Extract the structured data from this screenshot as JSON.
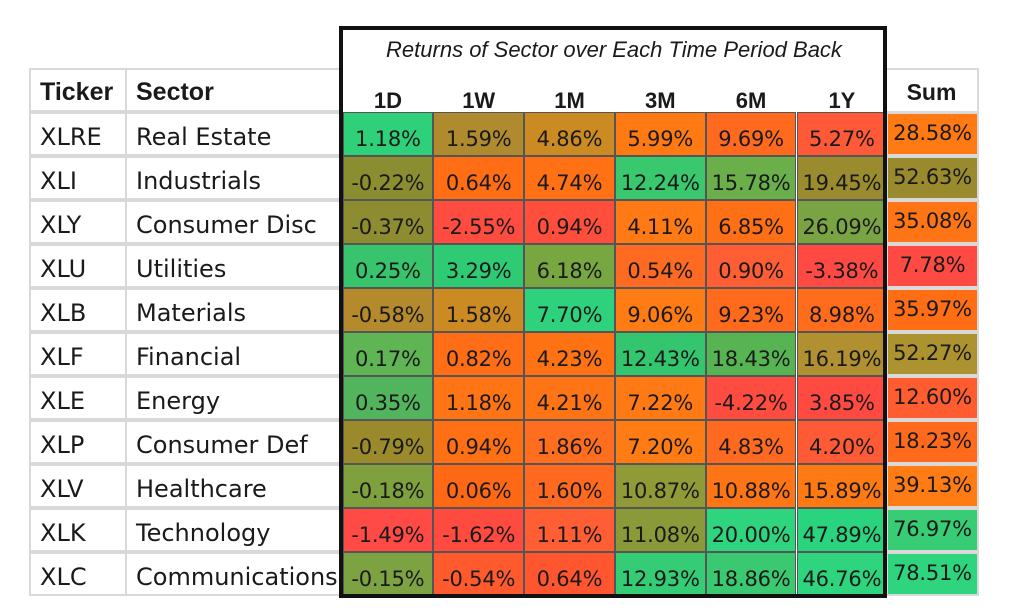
{
  "chart_data": {
    "type": "heatmap",
    "title": "Returns of Sector over Each Time Period Back",
    "header": {
      "ticker": "Ticker",
      "sector": "Sector",
      "sum": "Sum"
    },
    "periods": [
      "1D",
      "1W",
      "1M",
      "3M",
      "6M",
      "1Y"
    ],
    "rows": [
      {
        "ticker": "XLRE",
        "sector": "Real Estate",
        "values": [
          "1.18%",
          "1.59%",
          "4.86%",
          "5.99%",
          "9.69%",
          "5.27%"
        ],
        "sum": "28.58%"
      },
      {
        "ticker": "XLI",
        "sector": "Industrials",
        "values": [
          "-0.22%",
          "0.64%",
          "4.74%",
          "12.24%",
          "15.78%",
          "19.45%"
        ],
        "sum": "52.63%"
      },
      {
        "ticker": "XLY",
        "sector": "Consumer Disc",
        "values": [
          "-0.37%",
          "-2.55%",
          "0.94%",
          "4.11%",
          "6.85%",
          "26.09%"
        ],
        "sum": "35.08%"
      },
      {
        "ticker": "XLU",
        "sector": "Utilities",
        "values": [
          "0.25%",
          "3.29%",
          "6.18%",
          "0.54%",
          "0.90%",
          "-3.38%"
        ],
        "sum": "7.78%"
      },
      {
        "ticker": "XLB",
        "sector": "Materials",
        "values": [
          "-0.58%",
          "1.58%",
          "7.70%",
          "9.06%",
          "9.23%",
          "8.98%"
        ],
        "sum": "35.97%"
      },
      {
        "ticker": "XLF",
        "sector": "Financial",
        "values": [
          "0.17%",
          "0.82%",
          "4.23%",
          "12.43%",
          "18.43%",
          "16.19%"
        ],
        "sum": "52.27%"
      },
      {
        "ticker": "XLE",
        "sector": "Energy",
        "values": [
          "0.35%",
          "1.18%",
          "4.21%",
          "7.22%",
          "-4.22%",
          "3.85%"
        ],
        "sum": "12.60%"
      },
      {
        "ticker": "XLP",
        "sector": "Consumer Def",
        "values": [
          "-0.79%",
          "0.94%",
          "1.86%",
          "7.20%",
          "4.83%",
          "4.20%"
        ],
        "sum": "18.23%"
      },
      {
        "ticker": "XLV",
        "sector": "Healthcare",
        "values": [
          "-0.18%",
          "0.06%",
          "1.60%",
          "10.87%",
          "10.88%",
          "15.89%"
        ],
        "sum": "39.13%"
      },
      {
        "ticker": "XLK",
        "sector": "Technology",
        "values": [
          "-1.49%",
          "-1.62%",
          "1.11%",
          "11.08%",
          "20.00%",
          "47.89%"
        ],
        "sum": "76.97%"
      },
      {
        "ticker": "XLC",
        "sector": "Communications",
        "values": [
          "-0.15%",
          "-0.54%",
          "0.64%",
          "12.93%",
          "18.86%",
          "46.76%"
        ],
        "sum": "78.51%"
      }
    ],
    "colors": {
      "value_cells": [
        [
          "#2ed07a",
          "#b08a2e",
          "#cc8a22",
          "#ff7a12",
          "#ff6a1f",
          "#ff5a38"
        ],
        [
          "#8b8e30",
          "#ff6d14",
          "#ff7114",
          "#3ac86e",
          "#6aaf4a",
          "#9a8b2e"
        ],
        [
          "#8e8c30",
          "#ff4c40",
          "#ff4e3c",
          "#ff7a14",
          "#ff7016",
          "#7aa444"
        ],
        [
          "#37c46c",
          "#2fcb74",
          "#78a640",
          "#ff6a22",
          "#ff5e34",
          "#ff4a44"
        ],
        [
          "#b48a2c",
          "#cc8a22",
          "#2ed27c",
          "#ff7c14",
          "#ff6a1c",
          "#ff6c1c"
        ],
        [
          "#5fb454",
          "#ff6e16",
          "#ff7214",
          "#34c66e",
          "#56b552",
          "#b09030"
        ],
        [
          "#52b45c",
          "#ff7414",
          "#ff7414",
          "#ff7a14",
          "#ff4c40",
          "#ff4a42"
        ],
        [
          "#9b8a2c",
          "#ff6f14",
          "#ff6e1e",
          "#ff7c14",
          "#ff6a20",
          "#ff5a36"
        ],
        [
          "#7ea13e",
          "#ff6814",
          "#ff6a20",
          "#909b38",
          "#ff7414",
          "#ff7a12"
        ],
        [
          "#ff4a46",
          "#ff4a40",
          "#ff5e34",
          "#8b9a38",
          "#2ed47e",
          "#2ad47e"
        ],
        [
          "#7ca242",
          "#ff5a2e",
          "#ff5630",
          "#34cc74",
          "#3ac870",
          "#2ed47e"
        ]
      ],
      "sum_cells": [
        "#ff7a12",
        "#9a8a2e",
        "#ff7414",
        "#ff4a44",
        "#ff6e14",
        "#ad9330",
        "#ff5c30",
        "#ff6a1c",
        "#ff7c14",
        "#38cc74",
        "#2ed47e"
      ]
    }
  }
}
